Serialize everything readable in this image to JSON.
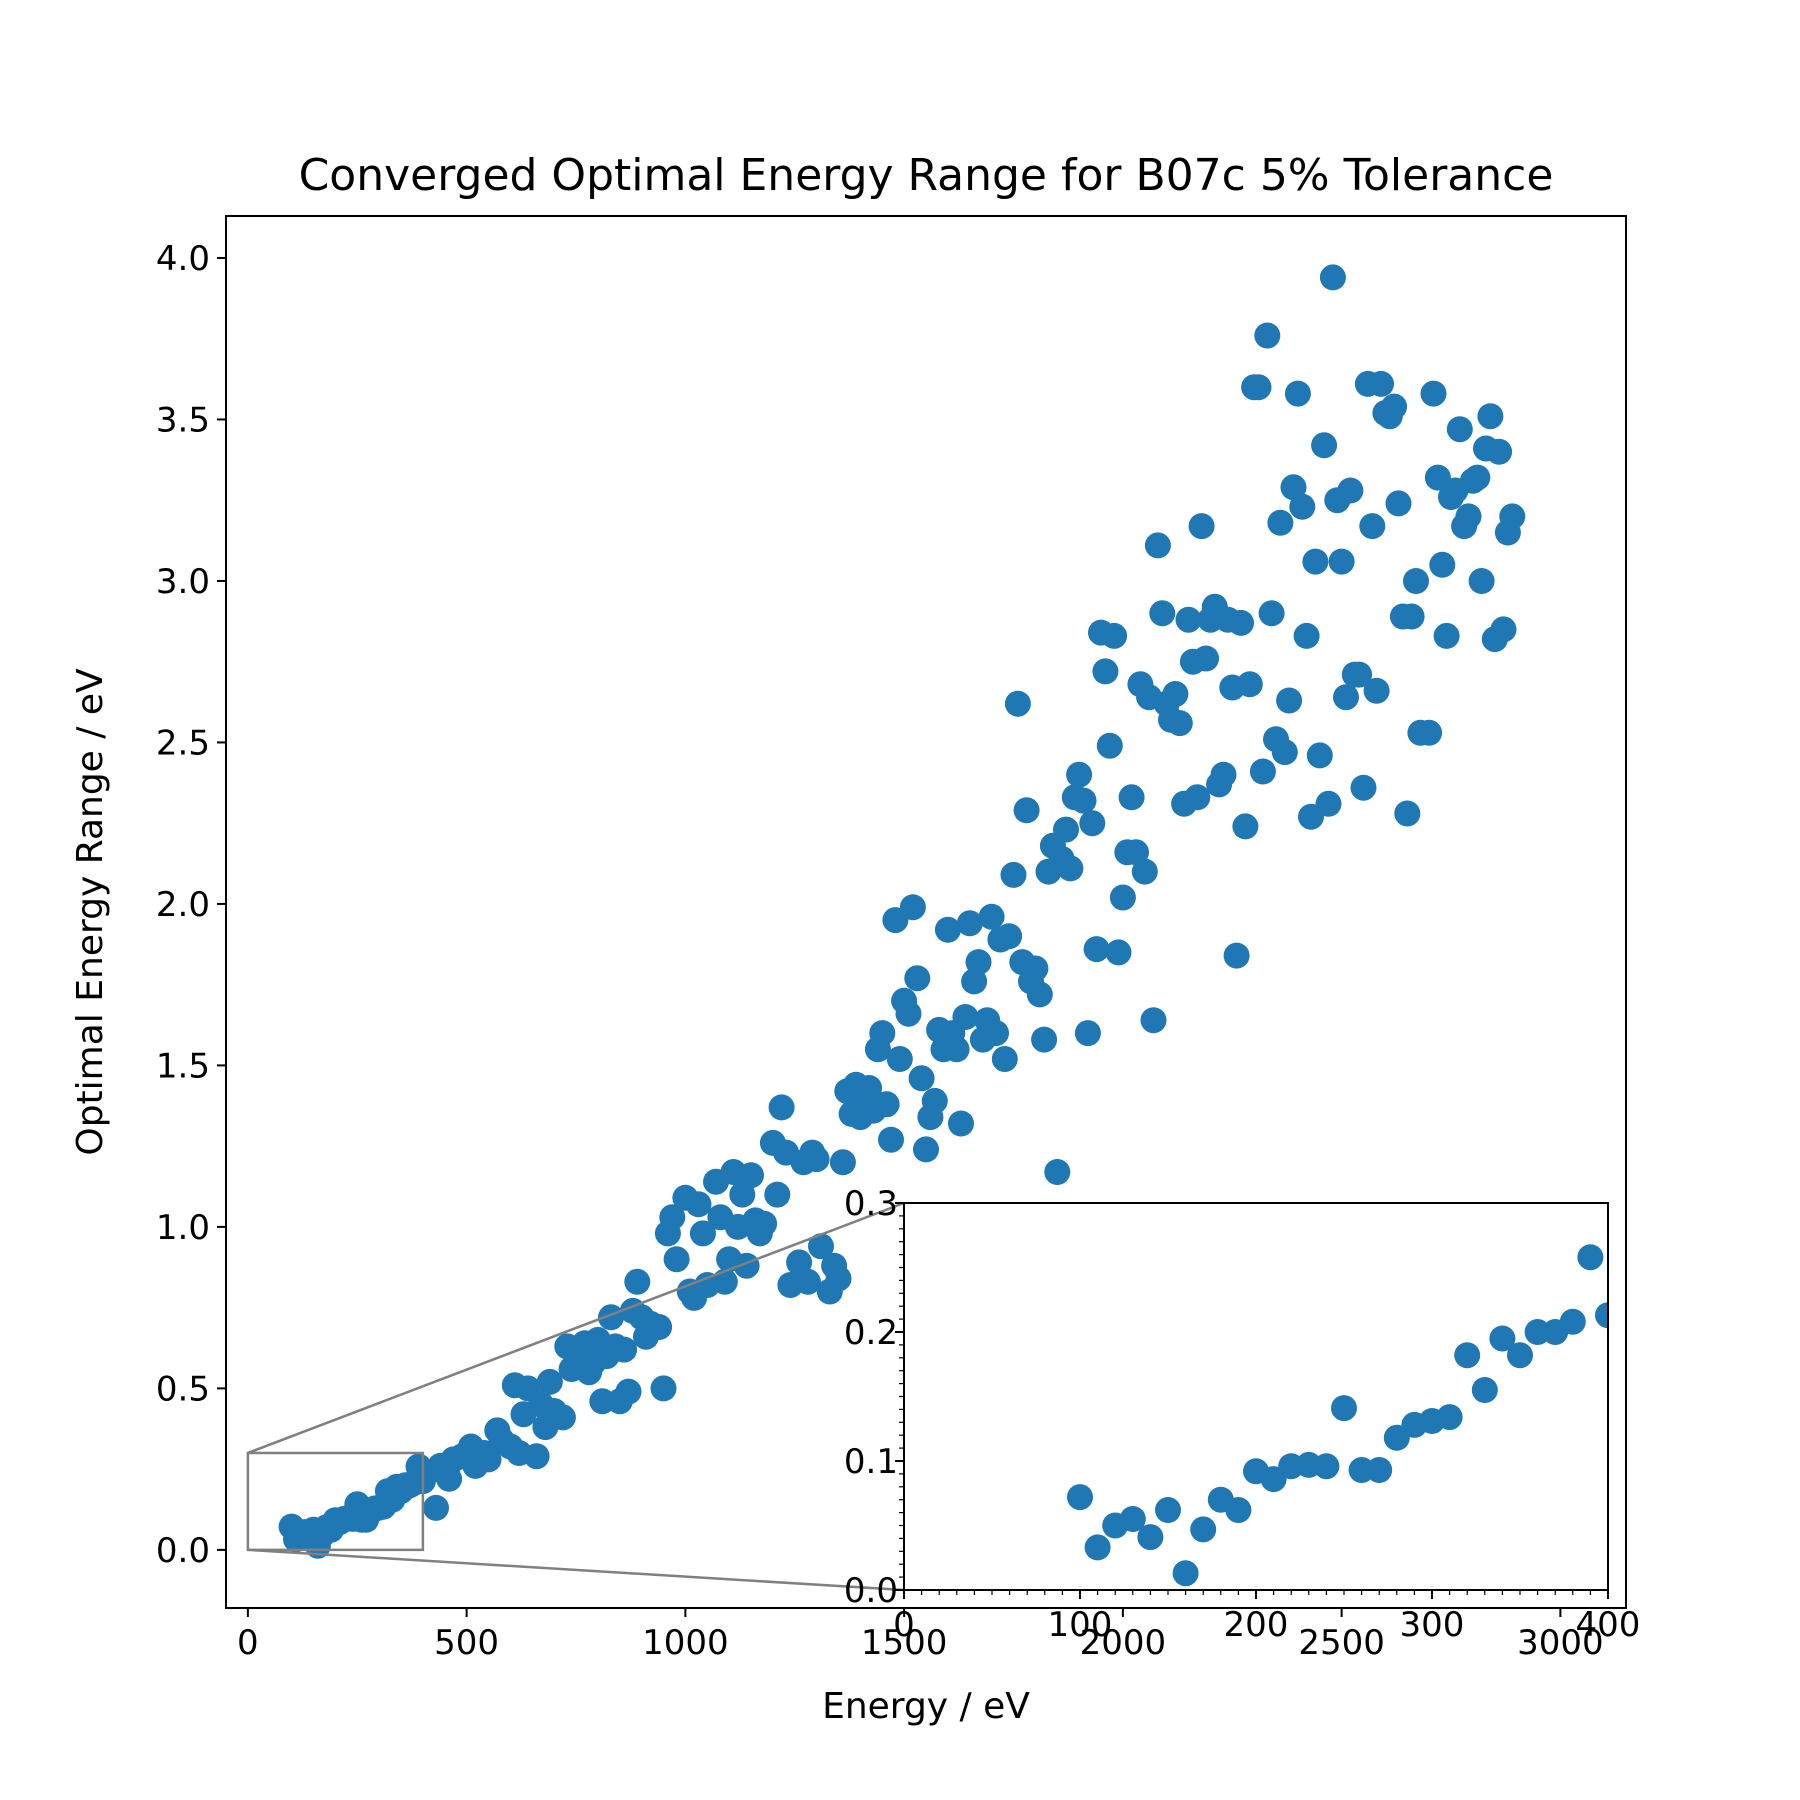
{
  "chart_data": {
    "type": "scatter",
    "title": "Converged Optimal Energy Range for B07c 5% Tolerance",
    "xlabel": "Energy / eV",
    "ylabel": "Optimal Energy Range / eV",
    "xlim": [
      -50,
      3150
    ],
    "ylim": [
      -0.18,
      4.13
    ],
    "xticks": [
      0,
      500,
      1000,
      1500,
      2000,
      2500,
      3000
    ],
    "yticks": [
      0.0,
      0.5,
      1.0,
      1.5,
      2.0,
      2.5,
      3.0,
      3.5,
      4.0
    ],
    "xtick_labels": [
      "0",
      "500",
      "1000",
      "1500",
      "2000",
      "2500",
      "3000"
    ],
    "ytick_labels": [
      "0.0",
      "0.5",
      "1.0",
      "1.5",
      "2.0",
      "2.5",
      "3.0",
      "3.5",
      "4.0"
    ],
    "grid": false,
    "legend": "none",
    "marker_color": "#1f77b4",
    "series": [
      {
        "points": [
          [
            100,
            0.072
          ],
          [
            110,
            0.033
          ],
          [
            120,
            0.05
          ],
          [
            130,
            0.055
          ],
          [
            140,
            0.041
          ],
          [
            150,
            0.062
          ],
          [
            160,
            0.013
          ],
          [
            170,
            0.047
          ],
          [
            180,
            0.07
          ],
          [
            190,
            0.062
          ],
          [
            200,
            0.092
          ],
          [
            210,
            0.086
          ],
          [
            220,
            0.096
          ],
          [
            230,
            0.097
          ],
          [
            240,
            0.096
          ],
          [
            250,
            0.141
          ],
          [
            260,
            0.093
          ],
          [
            270,
            0.093
          ],
          [
            280,
            0.118
          ],
          [
            290,
            0.128
          ],
          [
            300,
            0.131
          ],
          [
            310,
            0.134
          ],
          [
            320,
            0.182
          ],
          [
            330,
            0.155
          ],
          [
            340,
            0.195
          ],
          [
            350,
            0.182
          ],
          [
            360,
            0.2
          ],
          [
            370,
            0.2
          ],
          [
            380,
            0.208
          ],
          [
            390,
            0.258
          ],
          [
            400,
            0.213
          ],
          [
            410,
            0.24
          ],
          [
            430,
            0.13
          ],
          [
            440,
            0.26
          ],
          [
            460,
            0.22
          ],
          [
            470,
            0.28
          ],
          [
            490,
            0.29
          ],
          [
            510,
            0.32
          ],
          [
            520,
            0.26
          ],
          [
            540,
            0.3
          ],
          [
            550,
            0.28
          ],
          [
            570,
            0.37
          ],
          [
            580,
            0.34
          ],
          [
            600,
            0.32
          ],
          [
            610,
            0.51
          ],
          [
            620,
            0.3
          ],
          [
            630,
            0.42
          ],
          [
            640,
            0.5
          ],
          [
            660,
            0.29
          ],
          [
            670,
            0.45
          ],
          [
            680,
            0.38
          ],
          [
            690,
            0.52
          ],
          [
            700,
            0.43
          ],
          [
            720,
            0.41
          ],
          [
            730,
            0.63
          ],
          [
            740,
            0.56
          ],
          [
            750,
            0.6
          ],
          [
            770,
            0.64
          ],
          [
            780,
            0.55
          ],
          [
            790,
            0.58
          ],
          [
            800,
            0.65
          ],
          [
            810,
            0.46
          ],
          [
            820,
            0.6
          ],
          [
            830,
            0.72
          ],
          [
            840,
            0.63
          ],
          [
            850,
            0.46
          ],
          [
            860,
            0.62
          ],
          [
            870,
            0.49
          ],
          [
            880,
            0.74
          ],
          [
            890,
            0.83
          ],
          [
            900,
            0.72
          ],
          [
            910,
            0.66
          ],
          [
            920,
            0.7
          ],
          [
            940,
            0.69
          ],
          [
            950,
            0.5
          ],
          [
            960,
            0.98
          ],
          [
            970,
            1.03
          ],
          [
            980,
            0.9
          ],
          [
            1000,
            1.09
          ],
          [
            1010,
            0.8
          ],
          [
            1020,
            0.78
          ],
          [
            1030,
            1.07
          ],
          [
            1040,
            0.98
          ],
          [
            1050,
            0.82
          ],
          [
            1070,
            1.14
          ],
          [
            1080,
            1.03
          ],
          [
            1090,
            0.83
          ],
          [
            1100,
            0.9
          ],
          [
            1110,
            1.17
          ],
          [
            1120,
            1.0
          ],
          [
            1130,
            1.1
          ],
          [
            1140,
            0.88
          ],
          [
            1150,
            1.16
          ],
          [
            1160,
            1.02
          ],
          [
            1170,
            0.98
          ],
          [
            1180,
            1.01
          ],
          [
            1200,
            1.26
          ],
          [
            1210,
            1.1
          ],
          [
            1220,
            1.37
          ],
          [
            1230,
            1.23
          ],
          [
            1240,
            0.82
          ],
          [
            1260,
            0.89
          ],
          [
            1270,
            1.2
          ],
          [
            1280,
            0.83
          ],
          [
            1290,
            1.23
          ],
          [
            1300,
            1.21
          ],
          [
            1310,
            0.94
          ],
          [
            1330,
            0.8
          ],
          [
            1340,
            0.88
          ],
          [
            1350,
            0.84
          ],
          [
            1360,
            1.2
          ],
          [
            1370,
            1.42
          ],
          [
            1380,
            1.35
          ],
          [
            1390,
            1.44
          ],
          [
            1400,
            1.34
          ],
          [
            1410,
            1.38
          ],
          [
            1420,
            1.43
          ],
          [
            1430,
            1.36
          ],
          [
            1440,
            1.55
          ],
          [
            1450,
            1.6
          ],
          [
            1460,
            1.38
          ],
          [
            1470,
            1.27
          ],
          [
            1480,
            1.95
          ],
          [
            1490,
            1.52
          ],
          [
            1500,
            1.7
          ],
          [
            1510,
            1.66
          ],
          [
            1520,
            1.99
          ],
          [
            1530,
            1.77
          ],
          [
            1540,
            1.46
          ],
          [
            1550,
            1.24
          ],
          [
            1560,
            1.34
          ],
          [
            1570,
            1.39
          ],
          [
            1580,
            1.61
          ],
          [
            1590,
            1.55
          ],
          [
            1600,
            1.92
          ],
          [
            1610,
            1.6
          ],
          [
            1620,
            1.55
          ],
          [
            1630,
            1.32
          ],
          [
            1640,
            1.65
          ],
          [
            1650,
            1.94
          ],
          [
            1660,
            1.76
          ],
          [
            1670,
            1.82
          ],
          [
            1680,
            1.58
          ],
          [
            1690,
            1.64
          ],
          [
            1700,
            1.96
          ],
          [
            1710,
            1.6
          ],
          [
            1720,
            1.89
          ],
          [
            1730,
            1.52
          ],
          [
            1740,
            1.9
          ],
          [
            1750,
            2.09
          ],
          [
            1760,
            2.62
          ],
          [
            1770,
            1.82
          ],
          [
            1780,
            2.29
          ],
          [
            1790,
            1.76
          ],
          [
            1800,
            1.8
          ],
          [
            1810,
            1.72
          ],
          [
            1820,
            1.58
          ],
          [
            1830,
            2.1
          ],
          [
            1840,
            2.18
          ],
          [
            1850,
            1.17
          ],
          [
            1860,
            2.14
          ],
          [
            1870,
            2.23
          ],
          [
            1880,
            2.11
          ],
          [
            1890,
            2.33
          ],
          [
            1900,
            2.4
          ],
          [
            1910,
            2.32
          ],
          [
            1920,
            1.6
          ],
          [
            1930,
            2.25
          ],
          [
            1940,
            1.86
          ],
          [
            1950,
            2.84
          ],
          [
            1960,
            2.72
          ],
          [
            1970,
            2.49
          ],
          [
            1980,
            2.83
          ],
          [
            1990,
            1.85
          ],
          [
            2000,
            2.02
          ],
          [
            2010,
            2.16
          ],
          [
            2020,
            2.33
          ],
          [
            2030,
            2.16
          ],
          [
            2040,
            2.68
          ],
          [
            2050,
            2.1
          ],
          [
            2060,
            2.64
          ],
          [
            2070,
            1.64
          ],
          [
            2080,
            3.11
          ],
          [
            2090,
            2.9
          ],
          [
            2100,
            2.62
          ],
          [
            2110,
            2.57
          ],
          [
            2120,
            2.65
          ],
          [
            2130,
            2.56
          ],
          [
            2140,
            2.31
          ],
          [
            2150,
            2.88
          ],
          [
            2160,
            2.75
          ],
          [
            2170,
            2.33
          ],
          [
            2180,
            3.17
          ],
          [
            2190,
            2.76
          ],
          [
            2200,
            2.88
          ],
          [
            2210,
            2.92
          ],
          [
            2220,
            2.37
          ],
          [
            2230,
            2.4
          ],
          [
            2240,
            2.88
          ],
          [
            2250,
            2.67
          ],
          [
            2260,
            1.84
          ],
          [
            2270,
            2.87
          ],
          [
            2280,
            2.24
          ],
          [
            2290,
            2.68
          ],
          [
            2300,
            3.6
          ],
          [
            2310,
            3.6
          ],
          [
            2320,
            2.41
          ],
          [
            2330,
            3.76
          ],
          [
            2340,
            2.9
          ],
          [
            2350,
            2.51
          ],
          [
            2360,
            3.18
          ],
          [
            2370,
            2.47
          ],
          [
            2380,
            2.63
          ],
          [
            2390,
            3.29
          ],
          [
            2400,
            3.58
          ],
          [
            2410,
            3.23
          ],
          [
            2420,
            2.83
          ],
          [
            2430,
            2.27
          ],
          [
            2440,
            3.06
          ],
          [
            2450,
            2.46
          ],
          [
            2460,
            3.42
          ],
          [
            2470,
            2.31
          ],
          [
            2480,
            3.94
          ],
          [
            2490,
            3.25
          ],
          [
            2500,
            3.06
          ],
          [
            2510,
            2.64
          ],
          [
            2520,
            3.28
          ],
          [
            2530,
            2.71
          ],
          [
            2540,
            2.71
          ],
          [
            2550,
            2.36
          ],
          [
            2560,
            3.61
          ],
          [
            2570,
            3.17
          ],
          [
            2580,
            2.66
          ],
          [
            2590,
            3.61
          ],
          [
            2600,
            3.52
          ],
          [
            2610,
            3.51
          ],
          [
            2620,
            3.54
          ],
          [
            2630,
            3.24
          ],
          [
            2640,
            2.89
          ],
          [
            2650,
            2.28
          ],
          [
            2660,
            2.89
          ],
          [
            2670,
            3.0
          ],
          [
            2680,
            2.53
          ],
          [
            2700,
            2.53
          ],
          [
            2710,
            3.58
          ],
          [
            2720,
            3.32
          ],
          [
            2730,
            3.05
          ],
          [
            2740,
            2.83
          ],
          [
            2750,
            3.26
          ],
          [
            2760,
            3.28
          ],
          [
            2770,
            3.47
          ],
          [
            2780,
            3.17
          ],
          [
            2790,
            3.2
          ],
          [
            2800,
            3.31
          ],
          [
            2810,
            3.32
          ],
          [
            2820,
            3.0
          ],
          [
            2830,
            3.41
          ],
          [
            2840,
            3.51
          ],
          [
            2850,
            2.82
          ],
          [
            2860,
            3.4
          ],
          [
            2870,
            2.85
          ],
          [
            2880,
            3.15
          ],
          [
            2890,
            3.2
          ]
        ]
      }
    ],
    "inset": {
      "xlim": [
        0,
        400
      ],
      "ylim": [
        0.0,
        0.3
      ],
      "xticks": [
        0,
        100,
        200,
        300,
        400
      ],
      "yticks": [
        0.0,
        0.1,
        0.2,
        0.3
      ],
      "xtick_labels": [
        "0",
        "100",
        "200",
        "300",
        "400"
      ],
      "ytick_labels": [
        "0.0",
        "0.1",
        "0.2",
        "0.3"
      ],
      "zoom_region_color": "#808080"
    }
  }
}
